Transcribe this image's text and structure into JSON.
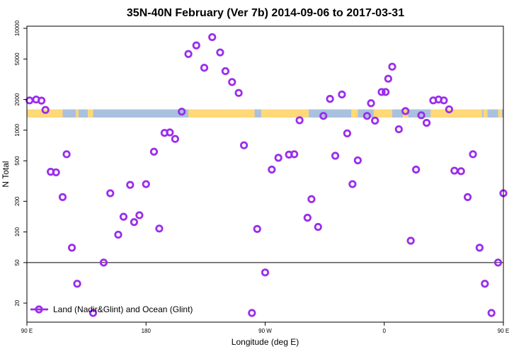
{
  "chart_data": {
    "type": "scatter",
    "title": "35N-40N February (Ver 7b)   2014-09-06 to 2017-03-31",
    "xlabel": "Longitude (deg E)",
    "ylabel": "N Total",
    "x_range": [
      90,
      450
    ],
    "y_scale": "log",
    "ylim": [
      13,
      10500
    ],
    "x_ticks": [
      {
        "value": 90,
        "label": "90 E"
      },
      {
        "value": 180,
        "label": "180"
      },
      {
        "value": 270,
        "label": "90 W"
      },
      {
        "value": 360,
        "label": "0"
      },
      {
        "value": 450,
        "label": "90 E"
      }
    ],
    "y_ticks": [
      {
        "value": 20,
        "label": "20"
      },
      {
        "value": 50,
        "label": "50"
      },
      {
        "value": 100,
        "label": "100"
      },
      {
        "value": 200,
        "label": "200"
      },
      {
        "value": 500,
        "label": "500"
      },
      {
        "value": 1000,
        "label": "1000"
      },
      {
        "value": 2000,
        "label": "2000"
      },
      {
        "value": 5000,
        "label": "5000"
      },
      {
        "value": 10000,
        "label": "10000"
      }
    ],
    "reference_line": {
      "y": 50
    },
    "land_ocean_strip": {
      "y_range": [
        1330,
        1600
      ],
      "land_color": "#FFD878",
      "ocean_color": "#A9C1DE",
      "land_spans": [
        [
          90,
          117
        ],
        [
          127,
          129
        ],
        [
          136,
          140
        ],
        [
          212,
          262
        ],
        [
          267,
          303
        ],
        [
          335,
          340
        ],
        [
          352,
          366
        ],
        [
          374,
          378
        ],
        [
          395,
          434
        ],
        [
          435,
          438
        ],
        [
          446,
          449
        ]
      ]
    },
    "legend": {
      "position": "bottom-left",
      "label": "Land (Nadir&Glint) and Ocean (Glint)"
    },
    "series": [
      {
        "name": "Land (Nadir&Glint) and Ocean (Glint)",
        "color": "#9A2EEB",
        "x": [
          92,
          97,
          101,
          104,
          108,
          112,
          117,
          120,
          124,
          128,
          140,
          148,
          153,
          159,
          163,
          168,
          171,
          175,
          180,
          186,
          190,
          194,
          198,
          202,
          207,
          212,
          218,
          224,
          230,
          236,
          240,
          245,
          250,
          254,
          260,
          264,
          270,
          275,
          280,
          288,
          292,
          296,
          302,
          305,
          310,
          314,
          319,
          323,
          328,
          332,
          336,
          340,
          347,
          350,
          353,
          358,
          361,
          363,
          366,
          371,
          376,
          380,
          384,
          388,
          392,
          397,
          401,
          405,
          409,
          413,
          418,
          423,
          427,
          432,
          436,
          441,
          446,
          450
        ],
        "y": [
          1960,
          2000,
          1950,
          1580,
          390,
          385,
          220,
          580,
          70,
          31,
          16,
          50,
          240,
          94,
          141,
          290,
          125,
          146,
          295,
          614,
          108,
          940,
          950,
          820,
          1520,
          5600,
          6800,
          4100,
          8200,
          5800,
          3800,
          2970,
          2320,
          710,
          16,
          107,
          40,
          410,
          535,
          575,
          580,
          1250,
          138,
          210,
          112,
          1380,
          2030,
          560,
          2240,
          930,
          295,
          505,
          1380,
          1840,
          1240,
          2370,
          2370,
          3200,
          4200,
          1020,
          1540,
          82,
          410,
          1400,
          1180,
          1960,
          2000,
          1960,
          1600,
          400,
          395,
          220,
          580,
          70,
          31,
          16,
          50,
          240
        ]
      }
    ]
  }
}
